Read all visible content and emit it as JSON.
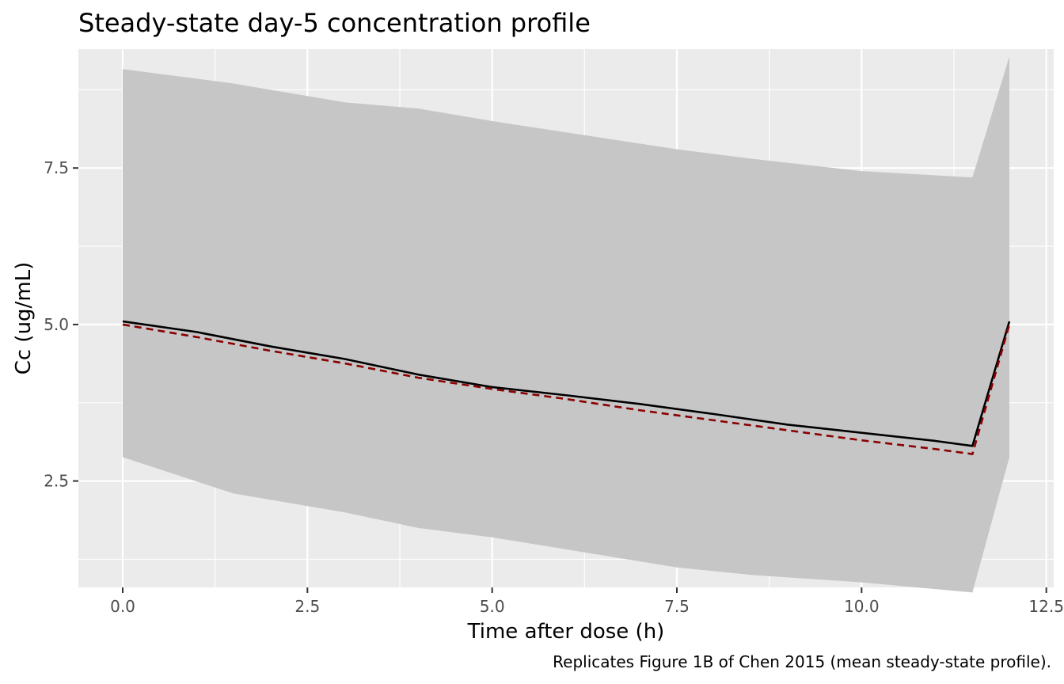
{
  "chart_data": {
    "type": "line",
    "title": "Steady-state day-5 concentration profile",
    "xlabel": "Time after dose (h)",
    "ylabel": "Cc (ug/mL)",
    "caption": "Replicates Figure 1B of Chen 2015 (mean steady-state profile).",
    "xlim": [
      -0.6,
      12.6
    ],
    "ylim": [
      0.8,
      9.4
    ],
    "x_ticks": [
      0,
      2.5,
      5,
      7.5,
      10,
      12.5
    ],
    "x_tick_labels": [
      "0.0",
      "2.5",
      "5.0",
      "7.5",
      "10.0",
      "12.5"
    ],
    "y_ticks": [
      2.5,
      5,
      7.5
    ],
    "y_tick_labels": [
      "2.5",
      "5.0",
      "7.5"
    ],
    "grid": true,
    "background": "#ebebeb",
    "band": {
      "color": "#c6c6c6",
      "x": [
        0,
        1.5,
        3,
        4,
        5,
        7.5,
        8.5,
        10,
        11.5,
        12
      ],
      "lower": [
        2.88,
        2.3,
        2.0,
        1.75,
        1.6,
        1.12,
        1.0,
        0.88,
        0.72,
        2.88
      ],
      "upper": [
        9.08,
        8.85,
        8.55,
        8.45,
        8.25,
        7.8,
        7.65,
        7.45,
        7.35,
        9.28
      ]
    },
    "series": [
      {
        "color": "#000000",
        "dash": "solid",
        "x": [
          0,
          1,
          2,
          3,
          4,
          5,
          6,
          7,
          8,
          9,
          10,
          11,
          11.5,
          12
        ],
        "y": [
          5.05,
          4.88,
          4.65,
          4.45,
          4.2,
          4.0,
          3.87,
          3.73,
          3.57,
          3.4,
          3.27,
          3.14,
          3.06,
          5.05
        ]
      },
      {
        "color": "#8b0000",
        "dash": "dashed",
        "x": [
          0,
          1,
          2,
          3,
          4,
          5,
          6,
          7,
          8,
          9,
          10,
          11,
          11.5,
          12
        ],
        "y": [
          5.0,
          4.8,
          4.58,
          4.38,
          4.15,
          3.97,
          3.81,
          3.63,
          3.47,
          3.31,
          3.15,
          3.01,
          2.93,
          5.0
        ]
      }
    ]
  }
}
